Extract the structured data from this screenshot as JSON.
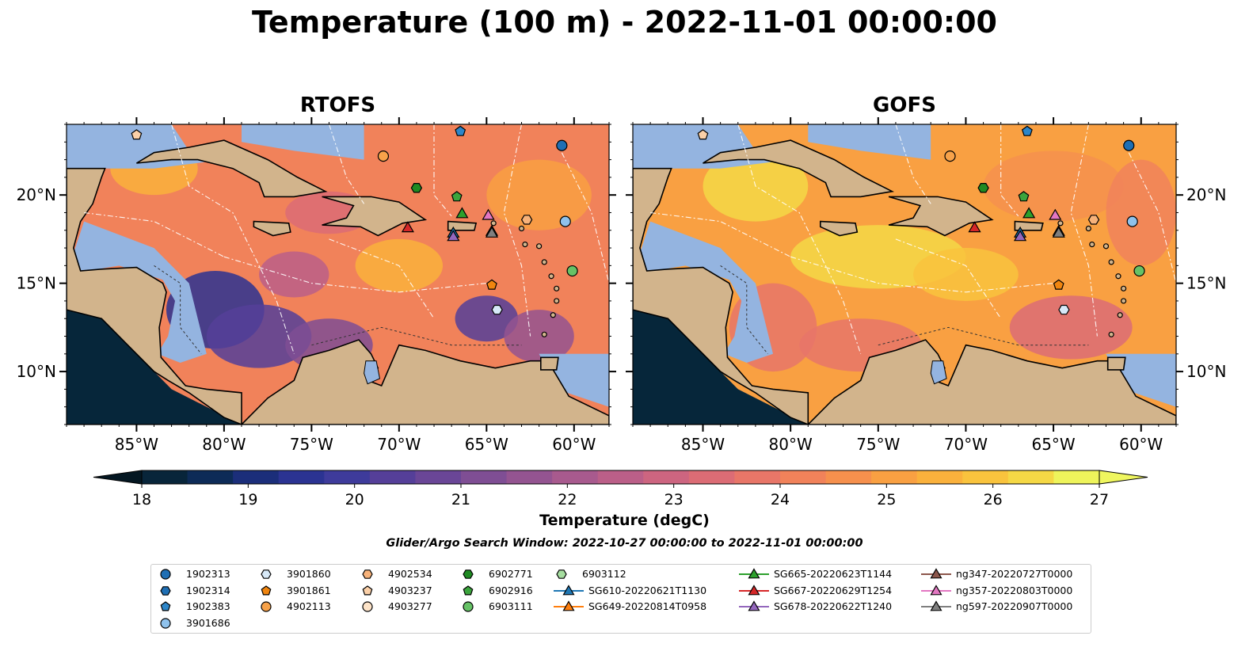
{
  "title": "Temperature (100 m) - 2022-11-01 00:00:00",
  "panels": [
    {
      "title": "RTOFS",
      "variant": "rtofs"
    },
    {
      "title": "GOFS",
      "variant": "gofs"
    }
  ],
  "map": {
    "lon_range": [
      -89,
      -58
    ],
    "lat_range": [
      7,
      24
    ],
    "lon_ticks": [
      "85°W",
      "80°W",
      "75°W",
      "70°W",
      "65°W",
      "60°W"
    ],
    "lat_ticks": [
      "20°N",
      "15°N",
      "10°N"
    ],
    "land_color": "#d2b48c",
    "shelf_color": "#94b4e0",
    "deep_color": "#06263a"
  },
  "colorbar": {
    "min": 18,
    "max": 27,
    "step": 0.5,
    "ticks": [
      "18",
      "19",
      "20",
      "21",
      "22",
      "23",
      "24",
      "25",
      "26",
      "27"
    ],
    "label": "Temperature (degC)",
    "colors": [
      "#08253a",
      "#0d2b57",
      "#1b2e7a",
      "#2b3392",
      "#3e3b9b",
      "#553f99",
      "#6a4697",
      "#7f4e94",
      "#945491",
      "#a85a8e",
      "#bb5f88",
      "#cd6580",
      "#dc6c75",
      "#e87668",
      "#f1825a",
      "#f6904d",
      "#f9a042",
      "#fab13c",
      "#f9c33d",
      "#f5d845",
      "#eef45b"
    ],
    "under_color": "#041722",
    "over_color": "#eff65f"
  },
  "search_window": "Glider/Argo Search Window: 2022-10-27 00:00:00 to 2022-11-01 00:00:00",
  "legend": [
    {
      "label": "1902313",
      "marker": "circle",
      "color": "#1f6fb4"
    },
    {
      "label": "1902314",
      "marker": "hexagon",
      "color": "#1f6fb4"
    },
    {
      "label": "1902383",
      "marker": "pentagon",
      "color": "#2d86c9"
    },
    {
      "label": "3901686",
      "marker": "circle",
      "color": "#8fc2ec"
    },
    {
      "label": "3901860",
      "marker": "hexagon",
      "color": "#d7e9f8"
    },
    {
      "label": "3901861",
      "marker": "pentagon",
      "color": "#f0850f"
    },
    {
      "label": "4902113",
      "marker": "circle",
      "color": "#f7a24a"
    },
    {
      "label": "4902534",
      "marker": "hexagon",
      "color": "#f7b27a"
    },
    {
      "label": "4903237",
      "marker": "pentagon",
      "color": "#fbd0a8"
    },
    {
      "label": "4903277",
      "marker": "circle",
      "color": "#fde3c8"
    },
    {
      "label": "6902771",
      "marker": "hexagon",
      "color": "#1f8a22"
    },
    {
      "label": "6902916",
      "marker": "pentagon",
      "color": "#3ba53d"
    },
    {
      "label": "6903111",
      "marker": "circle",
      "color": "#66c266"
    },
    {
      "label": "6903112",
      "marker": "hexagon",
      "color": "#a6dea0"
    },
    {
      "label": "SG610-20220621T1130",
      "marker": "triangle",
      "color": "#1f77b4",
      "line": true
    },
    {
      "label": "SG649-20220814T0958",
      "marker": "triangle",
      "color": "#ff7f0e",
      "line": true
    },
    {
      "label": "SG665-20220623T1144",
      "marker": "triangle",
      "color": "#2ca02c",
      "line": true
    },
    {
      "label": "SG667-20220629T1254",
      "marker": "triangle",
      "color": "#d62728",
      "line": true
    },
    {
      "label": "SG678-20220622T1240",
      "marker": "triangle",
      "color": "#9467bd",
      "line": true
    },
    {
      "label": "ng347-20220727T0000",
      "marker": "triangle",
      "color": "#8c564b",
      "line": true
    },
    {
      "label": "ng357-20220803T0000",
      "marker": "triangle",
      "color": "#e377c2",
      "line": true
    },
    {
      "label": "ng597-20220907T0000",
      "marker": "triangle",
      "color": "#7f7f7f",
      "line": true
    }
  ],
  "markers": [
    {
      "id": "1902313",
      "lon": -60.7,
      "lat": 22.8
    },
    {
      "id": "1902383",
      "lon": -66.5,
      "lat": 23.6
    },
    {
      "id": "3901686",
      "lon": -60.5,
      "lat": 18.5
    },
    {
      "id": "3901860",
      "lon": -64.4,
      "lat": 13.5
    },
    {
      "id": "3901861",
      "lon": -64.7,
      "lat": 14.9
    },
    {
      "id": "4902113",
      "lon": -70.9,
      "lat": 22.2
    },
    {
      "id": "4902534",
      "lon": -62.7,
      "lat": 18.6
    },
    {
      "id": "4903237",
      "lon": -85.0,
      "lat": 23.4
    },
    {
      "id": "6902771",
      "lon": -69.0,
      "lat": 20.4
    },
    {
      "id": "6902916",
      "lon": -66.7,
      "lat": 19.9
    },
    {
      "id": "6903111",
      "lon": -60.1,
      "lat": 15.7
    },
    {
      "id": "SG610-20220621T1130",
      "lon": -66.9,
      "lat": 17.8
    },
    {
      "id": "SG665-20220623T1144",
      "lon": -66.4,
      "lat": 18.9
    },
    {
      "id": "SG667-20220629T1254",
      "lon": -69.5,
      "lat": 18.1
    },
    {
      "id": "SG678-20220622T1240",
      "lon": -66.9,
      "lat": 17.6
    },
    {
      "id": "ng347-20220727T0000",
      "lon": -64.7,
      "lat": 17.9
    },
    {
      "id": "ng357-20220803T0000",
      "lon": -64.9,
      "lat": 18.8
    },
    {
      "id": "ng597-20220907T0000",
      "lon": -64.7,
      "lat": 17.8
    }
  ]
}
